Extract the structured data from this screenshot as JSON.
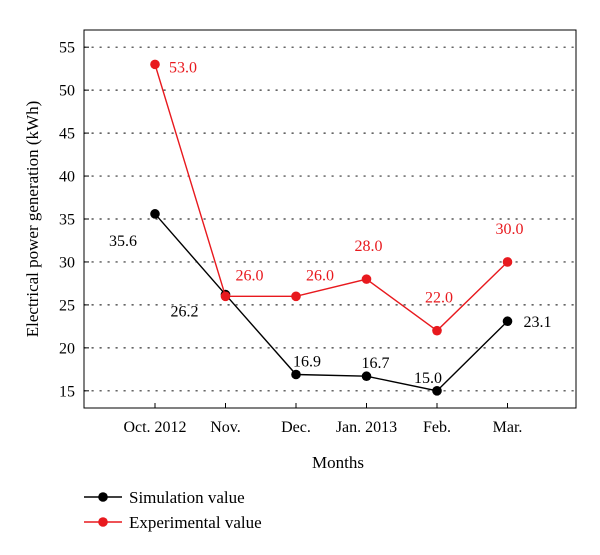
{
  "chart_data": {
    "type": "line",
    "categories": [
      "Oct. 2012",
      "Nov.",
      "Dec.",
      "Jan. 2013",
      "Feb.",
      "Mar."
    ],
    "xlabel": "Months",
    "ylabel": "Electrical power generation (kWh)",
    "ylim": [
      13,
      57
    ],
    "yticks": [
      15,
      20,
      25,
      30,
      35,
      40,
      45,
      50,
      55
    ],
    "ytick_labels": [
      "15",
      "20",
      "25",
      "30",
      "35",
      "40",
      "45",
      "50",
      "55"
    ],
    "grid": true,
    "legend_position": "bottom-left",
    "series": [
      {
        "name": "Simulation value",
        "color": "#000000",
        "values": [
          35.6,
          26.2,
          16.9,
          16.7,
          15.0,
          23.1
        ],
        "labels": [
          "35.6",
          "26.2",
          "16.9",
          "16.7",
          "15.0",
          "23.1"
        ]
      },
      {
        "name": "Experimental value",
        "color": "#e8191e",
        "values": [
          53.0,
          26.0,
          26.0,
          28.0,
          22.0,
          30.0
        ],
        "labels": [
          "53.0",
          "26.0",
          "26.0",
          "28.0",
          "22.0",
          "30.0"
        ]
      }
    ]
  }
}
